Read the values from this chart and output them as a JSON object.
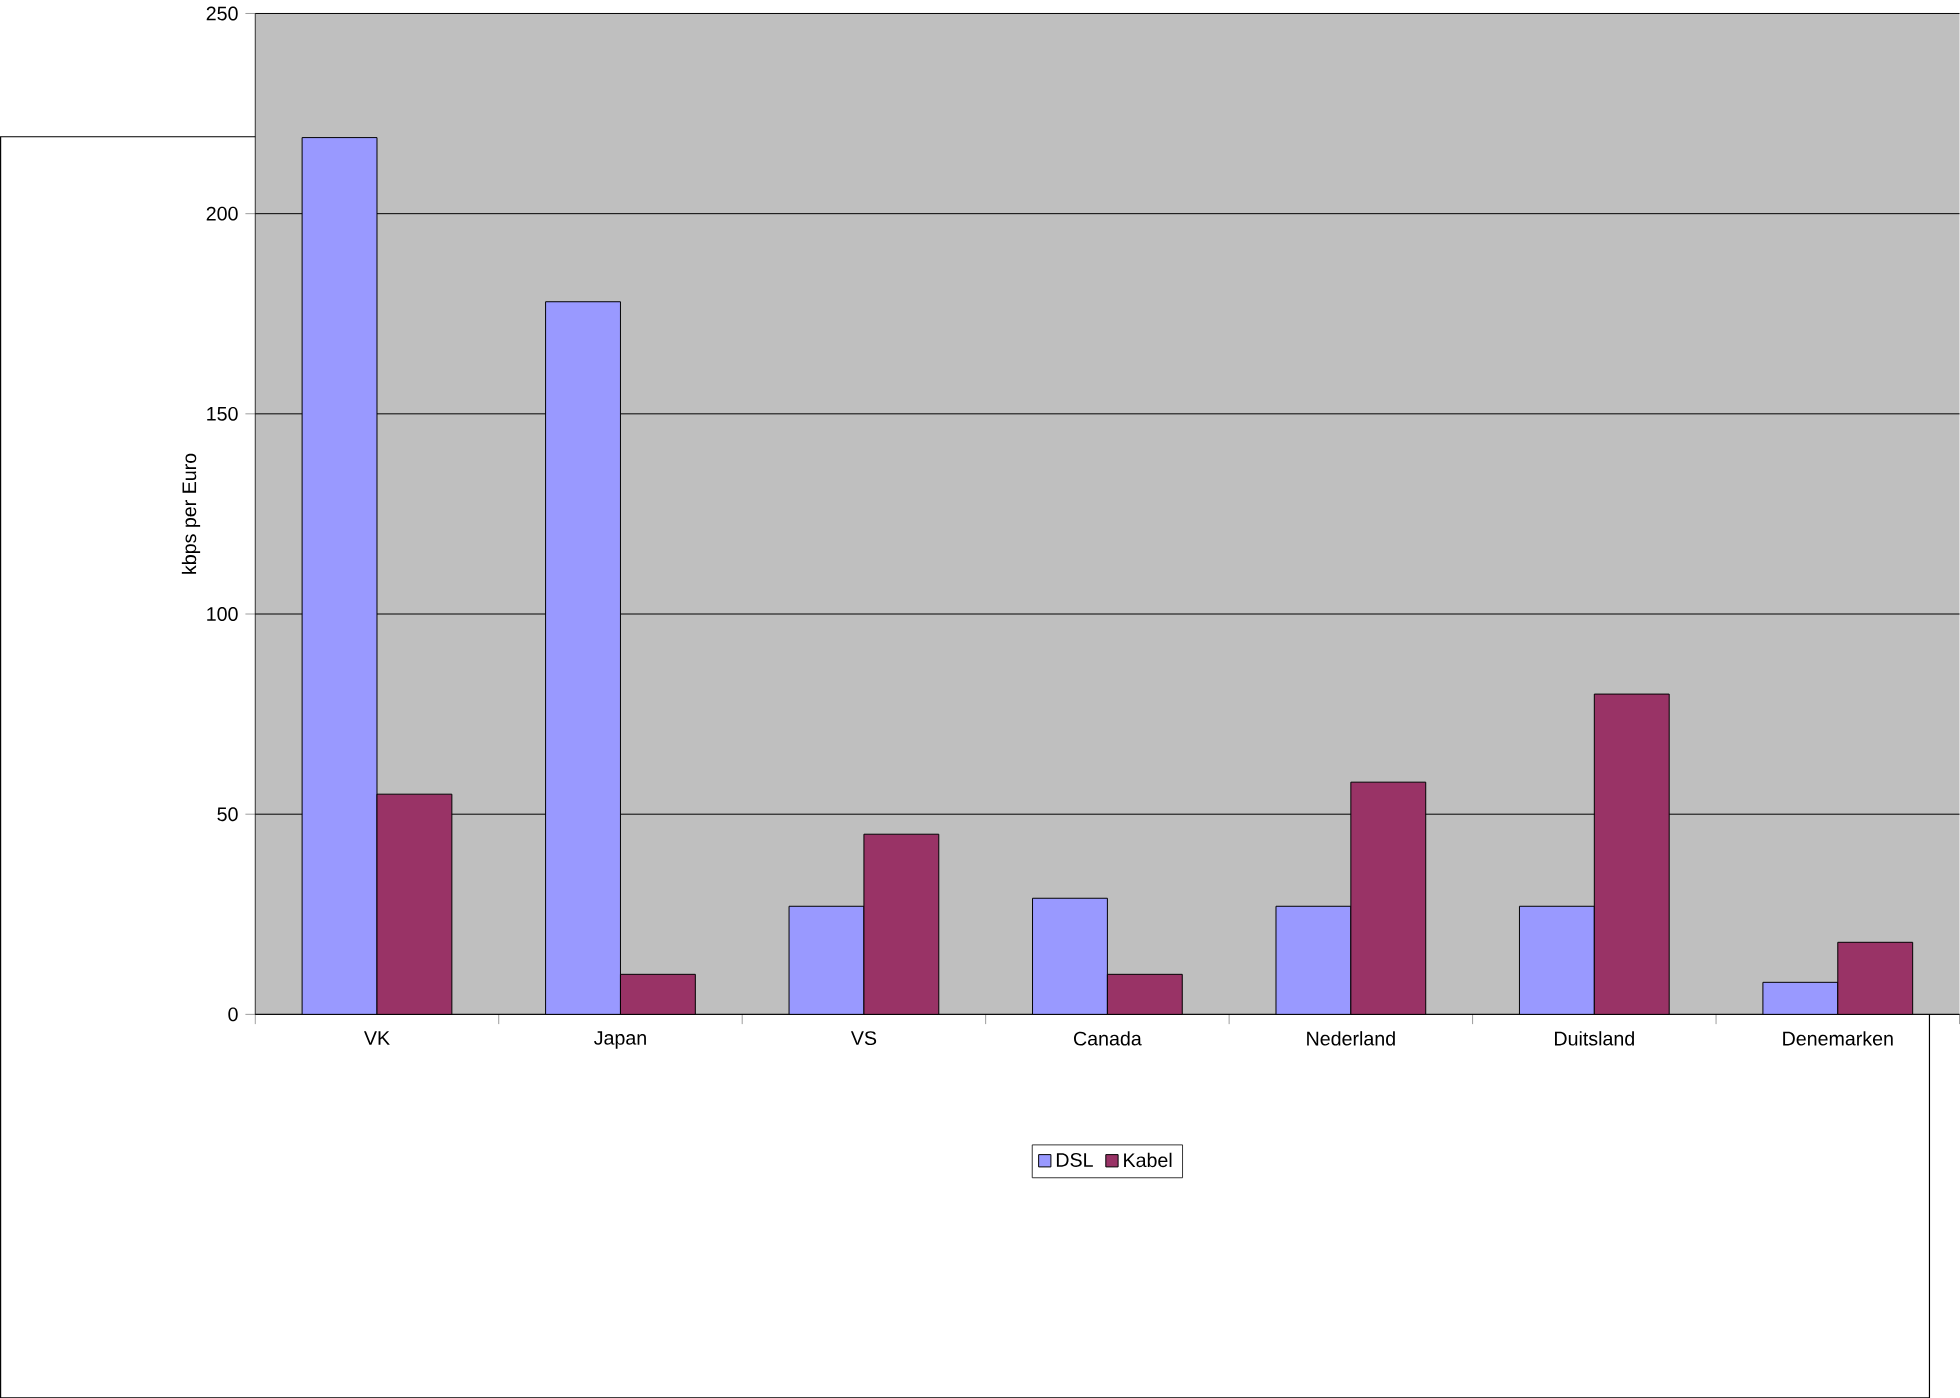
{
  "chart_data": {
    "type": "bar",
    "ylabel": "kbps per Euro",
    "categories": [
      "VK",
      "Japan",
      "VS",
      "Canada",
      "Nederland",
      "Duitsland",
      "Denemarken"
    ],
    "series": [
      {
        "name": "DSL",
        "color": "#9999ff",
        "values": [
          219,
          178,
          27,
          29,
          27,
          27,
          8
        ]
      },
      {
        "name": "Kabel",
        "color": "#993366",
        "values": [
          55,
          10,
          45,
          10,
          58,
          80,
          18
        ]
      }
    ],
    "ylim": [
      0,
      250
    ],
    "yticks": [
      0,
      50,
      100,
      150,
      200,
      250
    ],
    "grid": "y",
    "legend": "bottom"
  }
}
